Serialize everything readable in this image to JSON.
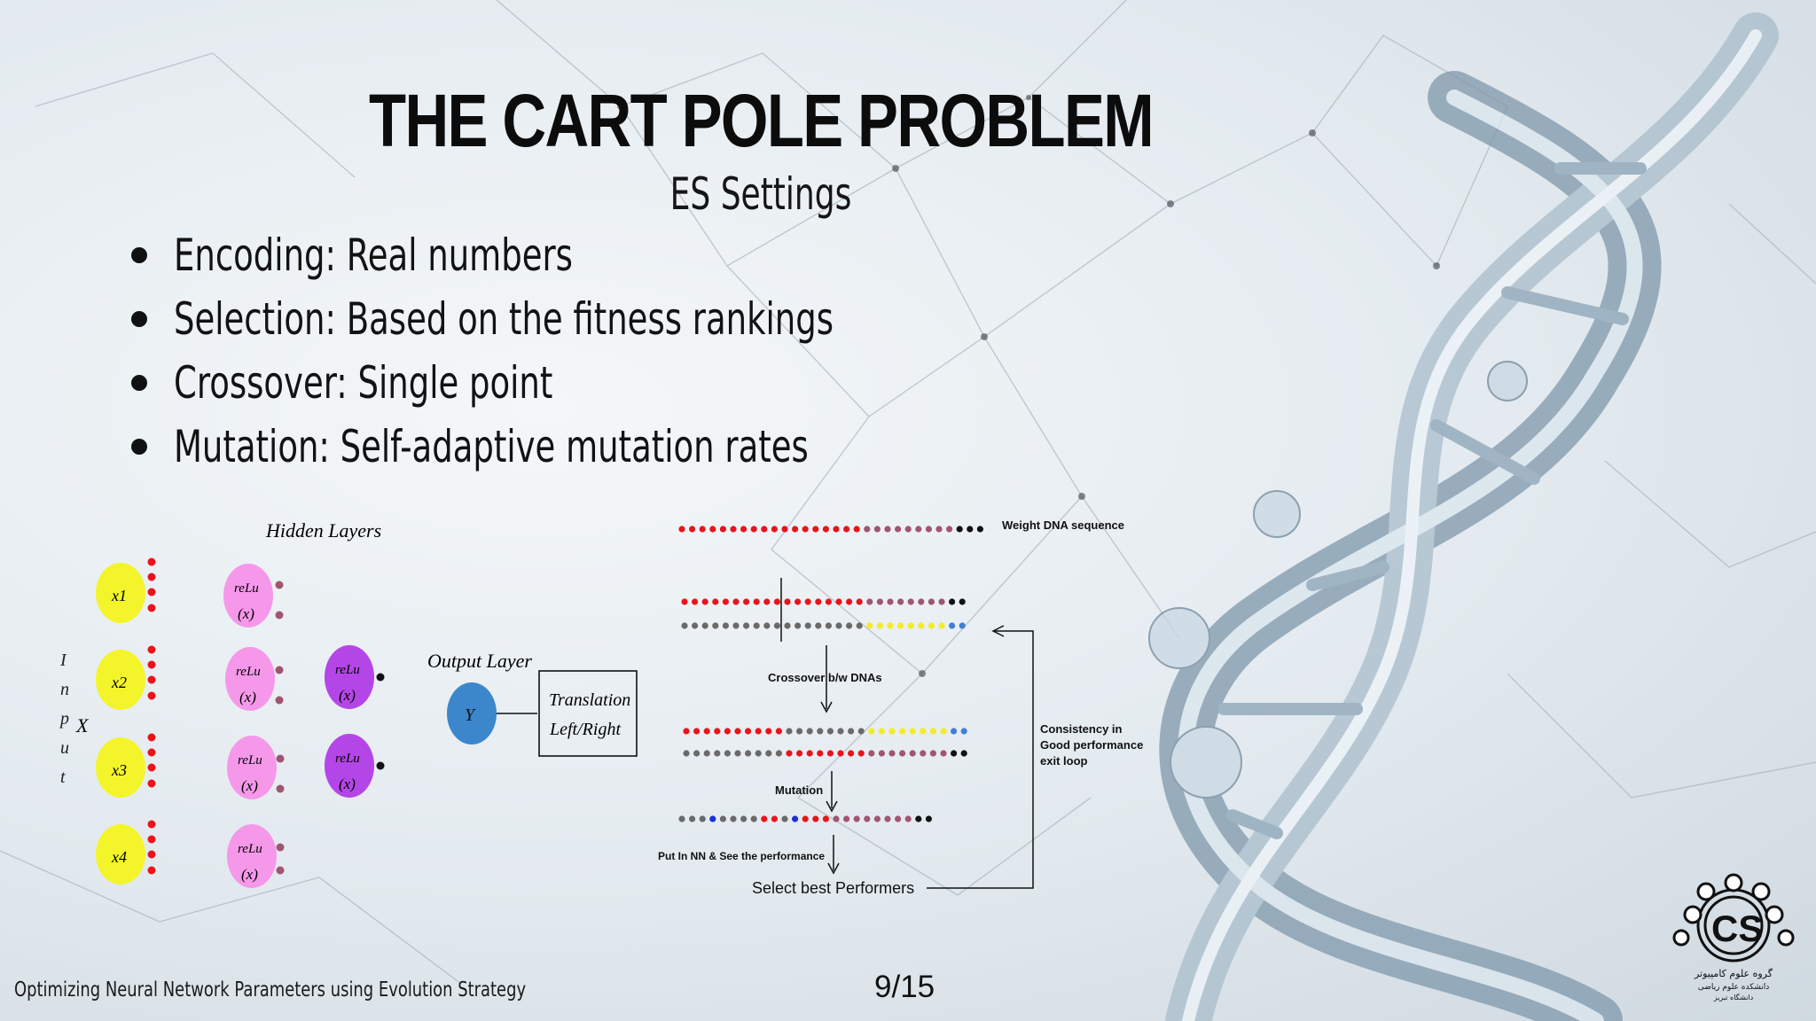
{
  "slide": {
    "title": "THE CART POLE PROBLEM",
    "subtitle": "ES Settings",
    "bullets": [
      "Encoding: Real numbers",
      "Selection: Based on the fitness rankings",
      "Crossover: Single point",
      "Mutation: Self-adaptive mutation rates"
    ],
    "footer": "Optimizing Neural Network Parameters using Evolution Strategy",
    "page": "9/15"
  },
  "network": {
    "hidden_layers_label": "Hidden Layers",
    "output_layer_label": "Output Layer",
    "input_side_label": [
      "I",
      "n",
      "p",
      "u",
      "t"
    ],
    "input_x": "X",
    "inputs": [
      "x1",
      "x2",
      "x3",
      "x4"
    ],
    "relu_top": "reLu",
    "relu_bottom": "(x)",
    "output_node": "Y",
    "translation_line1": "Translation",
    "translation_line2": "Left/Right"
  },
  "ga": {
    "weight_dna_label": "Weight DNA sequence",
    "crossover_label": "Crossover b/w DNAs",
    "mutation_label": "Mutation",
    "put_in_nn_label": "Put In NN & See the performance",
    "select_best_label": "Select best Performers",
    "consistency_line1": "Consistency in",
    "consistency_line2": "Good performance",
    "consistency_line3": "exit loop"
  },
  "logo": {
    "text": "CS",
    "caption_line1": "گروه علوم کامپیوتر",
    "caption_line2": "دانشکده علوم ریاضی",
    "caption_line3": "دانشگاه تبریز"
  },
  "colors": {
    "red": "#e8141c",
    "grey": "#6a6a6a",
    "yellow": "#f2ec2a",
    "blue": "#3f7fd6",
    "black": "#111111",
    "node_yellow": "#f3f52a",
    "node_pink": "#f598ea",
    "node_purple": "#b446e8",
    "node_blue": "#3c86cc"
  }
}
